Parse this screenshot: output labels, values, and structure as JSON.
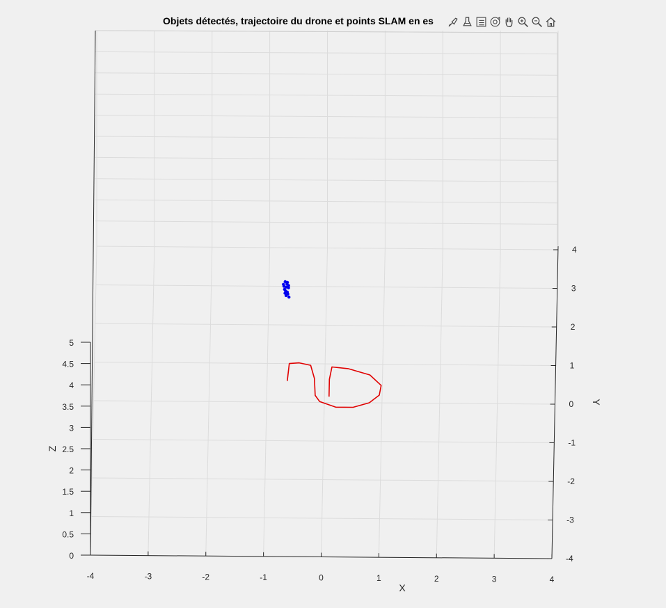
{
  "title": "Objets détectés, trajectoire du drone et points SLAM en es",
  "toolbar": [
    {
      "name": "brush-icon"
    },
    {
      "name": "data-tips-icon"
    },
    {
      "name": "legend-icon"
    },
    {
      "name": "rotate-3d-icon"
    },
    {
      "name": "pan-icon"
    },
    {
      "name": "zoom-in-icon"
    },
    {
      "name": "zoom-out-icon"
    },
    {
      "name": "home-icon"
    }
  ],
  "chart_data": {
    "type": "scatter",
    "view": "3d",
    "xlabel": "X",
    "ylabel": "Y",
    "zlabel": "Z",
    "xlim": [
      -4,
      4
    ],
    "ylim": [
      -4,
      4
    ],
    "zlim": [
      0,
      5
    ],
    "xticks": [
      "-4",
      "-3",
      "-2",
      "-1",
      "0",
      "1",
      "2",
      "3",
      "4"
    ],
    "yticks": [
      "-4",
      "-3",
      "-2",
      "-1",
      "0",
      "1",
      "2",
      "3",
      "4"
    ],
    "zticks": [
      "0",
      "0.5",
      "1",
      "1.5",
      "2",
      "2.5",
      "3",
      "3.5",
      "4",
      "4.5",
      "5"
    ],
    "grid": true,
    "series": [
      {
        "type": "line",
        "color": "#e00000",
        "points": [
          [
            -0.65,
            0.55
          ],
          [
            -0.62,
            1.0
          ],
          [
            -0.45,
            1.02
          ],
          [
            -0.25,
            0.96
          ],
          [
            -0.18,
            0.62
          ],
          [
            -0.16,
            0.18
          ],
          [
            -0.08,
            0.02
          ],
          [
            0.2,
            -0.12
          ],
          [
            0.5,
            -0.12
          ],
          [
            0.78,
            0.0
          ],
          [
            0.95,
            0.2
          ],
          [
            0.98,
            0.45
          ],
          [
            0.78,
            0.72
          ],
          [
            0.4,
            0.88
          ],
          [
            0.12,
            0.92
          ],
          [
            0.08,
            0.6
          ],
          [
            0.08,
            0.15
          ]
        ]
      },
      {
        "type": "scatter",
        "color": "#0000ee",
        "points": [
          [
            -0.75,
            3.05
          ],
          [
            -0.72,
            3.12
          ],
          [
            -0.68,
            3.1
          ],
          [
            -0.66,
            3.02
          ],
          [
            -0.7,
            2.98
          ],
          [
            -0.73,
            2.92
          ],
          [
            -0.71,
            2.88
          ],
          [
            -0.68,
            2.85
          ],
          [
            -0.67,
            2.8
          ],
          [
            -0.7,
            2.76
          ],
          [
            -0.72,
            2.82
          ],
          [
            -0.74,
            3.0
          ],
          [
            -0.69,
            3.06
          ],
          [
            -0.66,
            2.96
          ],
          [
            -0.65,
            2.72
          ]
        ]
      }
    ]
  }
}
